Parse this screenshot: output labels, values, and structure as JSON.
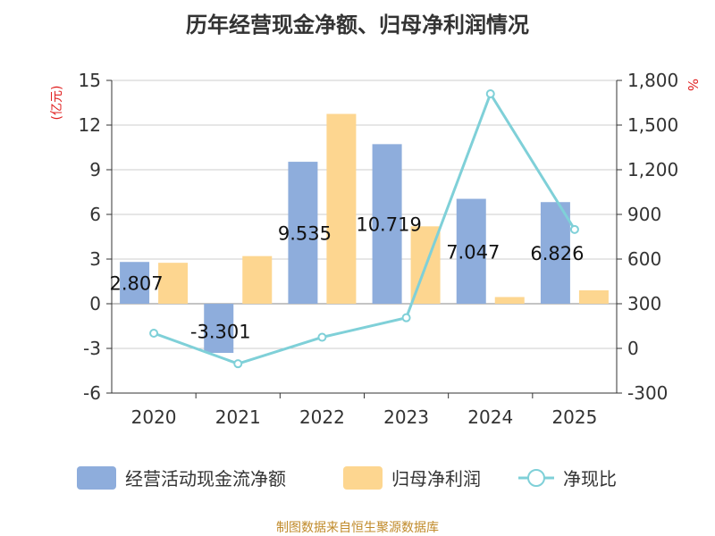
{
  "title": "历年经营现金净额、归母净利润情况",
  "source": "制图数据来自恒生聚源数据库",
  "colors": {
    "bar1": "#8eaddc",
    "bar2": "#fdd690",
    "line": "#7fd0d8",
    "axis": "#333333",
    "grid": "#cccccc",
    "unit": "#e02020"
  },
  "chart_data": {
    "type": "bar",
    "categories": [
      "2020",
      "2021",
      "2022",
      "2023",
      "2024",
      "2025"
    ],
    "series": [
      {
        "name": "经营活动现金流净额",
        "type": "bar",
        "axis": "left",
        "values": [
          2.807,
          -3.301,
          9.535,
          10.719,
          7.047,
          6.826
        ],
        "labels": [
          "2.807",
          "-3.301",
          "9.535",
          "10.719",
          "7.047",
          "6.826"
        ]
      },
      {
        "name": "归母净利润",
        "type": "bar",
        "axis": "left",
        "values": [
          2.75,
          3.2,
          12.75,
          5.2,
          0.45,
          0.9
        ]
      },
      {
        "name": "净现比",
        "type": "line",
        "axis": "right",
        "values": [
          102,
          -103,
          75,
          206,
          1710,
          799
        ]
      }
    ],
    "left_axis": {
      "unit": "(亿元)",
      "ylim": [
        -6,
        15
      ],
      "ticks": [
        -6,
        -3,
        0,
        3,
        6,
        9,
        12,
        15
      ],
      "tick_labels": [
        "-6",
        "-3",
        "0",
        "3",
        "6",
        "9",
        "12",
        "15"
      ]
    },
    "right_axis": {
      "unit": "%",
      "ylim": [
        -300,
        1800
      ],
      "ticks": [
        -300,
        0,
        300,
        600,
        900,
        1200,
        1500,
        1800
      ],
      "tick_labels": [
        "-300",
        "0",
        "300",
        "600",
        "900",
        "1,200",
        "1,500",
        "1,800"
      ]
    },
    "grid": true,
    "legend_position": "bottom"
  }
}
